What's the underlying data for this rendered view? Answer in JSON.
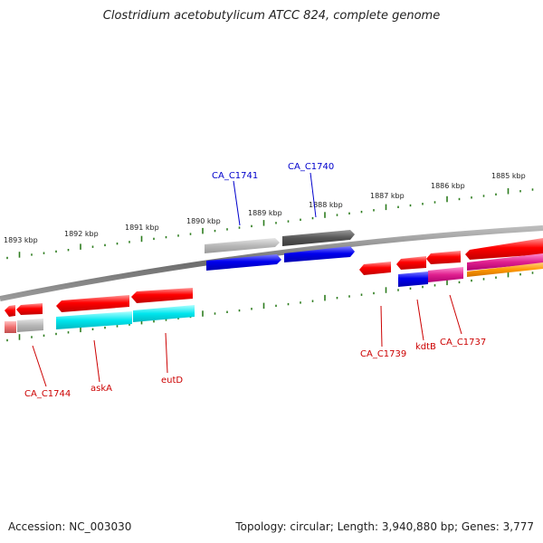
{
  "title": "Clostridium acetobutylicum ATCC 824, complete genome",
  "footer": {
    "accession": "Accession: NC_003030",
    "summary": "Topology: circular; Length: 3,940,880 bp; Genes: 3,777"
  },
  "colors": {
    "backbone": "#7a7a7a",
    "tick_green": "#2e7d1f",
    "label_blue": "#0000cc",
    "label_red": "#cc0000",
    "gene_red": "#ff0000",
    "gene_blue": "#0000ee",
    "gene_gray_light": "#b8b8b8",
    "gene_gray_dark": "#555555",
    "gene_cyan": "#00e0e8",
    "gene_magenta": "#e0208f",
    "gene_orange": "#ff9900",
    "gene_pink": "#f07070"
  },
  "kbp_labels": [
    "1893 kbp",
    "1892 kbp",
    "1891 kbp",
    "1890 kbp",
    "1889 kbp",
    "1888 kbp",
    "1887 kbp",
    "1886 kbp",
    "1885 kbp"
  ],
  "gene_labels": [
    "CA_C1741",
    "CA_C1740",
    "CA_C1744",
    "askA",
    "eutD",
    "CA_C1739",
    "kdtB",
    "CA_C1737"
  ]
}
